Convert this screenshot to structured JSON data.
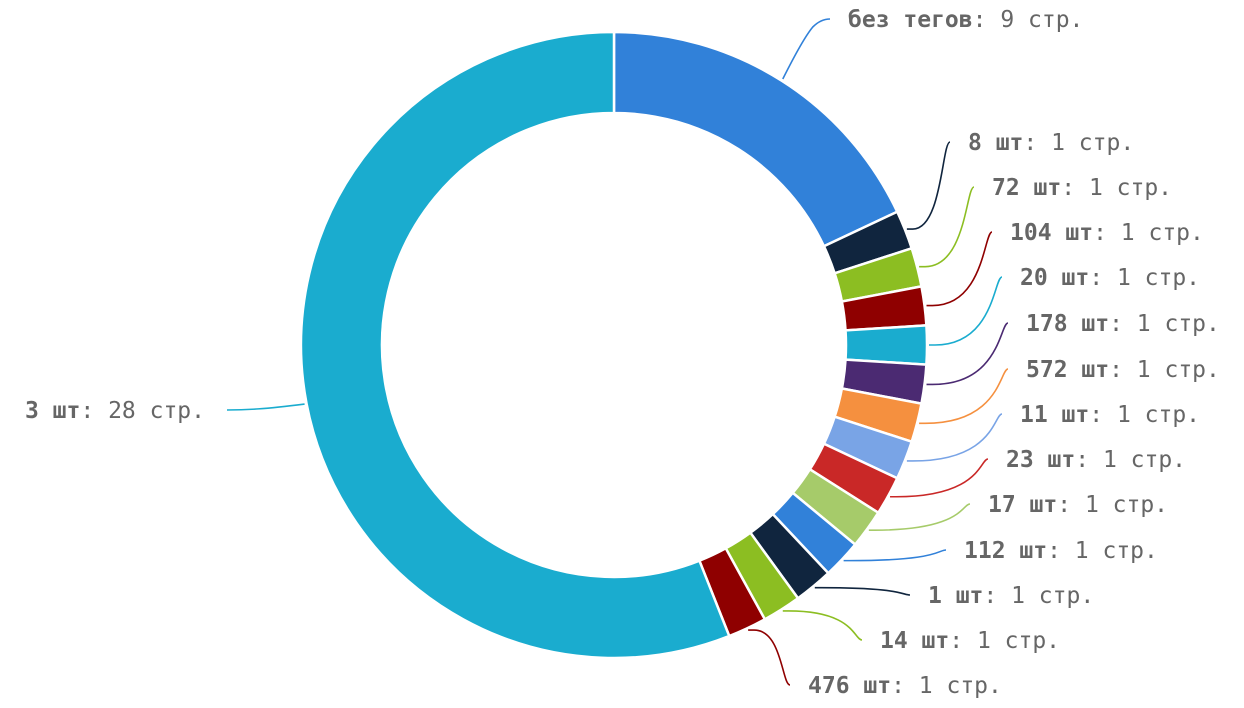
{
  "chart_data": {
    "type": "pie",
    "donut": true,
    "slices": [
      {
        "name": "без тегов",
        "value": 9,
        "unit": "стр.",
        "color": "#3181d9"
      },
      {
        "name": "8 шт",
        "value": 1,
        "unit": "стр.",
        "color": "#10253e"
      },
      {
        "name": "72 шт",
        "value": 1,
        "unit": "стр.",
        "color": "#8cbe22"
      },
      {
        "name": "104 шт",
        "value": 1,
        "unit": "стр.",
        "color": "#8f0000"
      },
      {
        "name": "20 шт",
        "value": 1,
        "unit": "стр.",
        "color": "#1aaccf"
      },
      {
        "name": "178 шт",
        "value": 1,
        "unit": "стр.",
        "color": "#4b2a72"
      },
      {
        "name": "572 шт",
        "value": 1,
        "unit": "стр.",
        "color": "#f5903f"
      },
      {
        "name": "11 шт",
        "value": 1,
        "unit": "стр.",
        "color": "#79a4e6"
      },
      {
        "name": "23 шт",
        "value": 1,
        "unit": "стр.",
        "color": "#c92827"
      },
      {
        "name": "17 шт",
        "value": 1,
        "unit": "стр.",
        "color": "#a6cb6a"
      },
      {
        "name": "112 шт",
        "value": 1,
        "unit": "стр.",
        "color": "#3181d9"
      },
      {
        "name": "1 шт",
        "value": 1,
        "unit": "стр.",
        "color": "#10253e"
      },
      {
        "name": "14 шт",
        "value": 1,
        "unit": "стр.",
        "color": "#8cbe22"
      },
      {
        "name": "476 шт",
        "value": 1,
        "unit": "стр.",
        "color": "#8f0000"
      },
      {
        "name": "3 шт",
        "value": 28,
        "unit": "стр.",
        "color": "#1aaccf"
      }
    ]
  }
}
